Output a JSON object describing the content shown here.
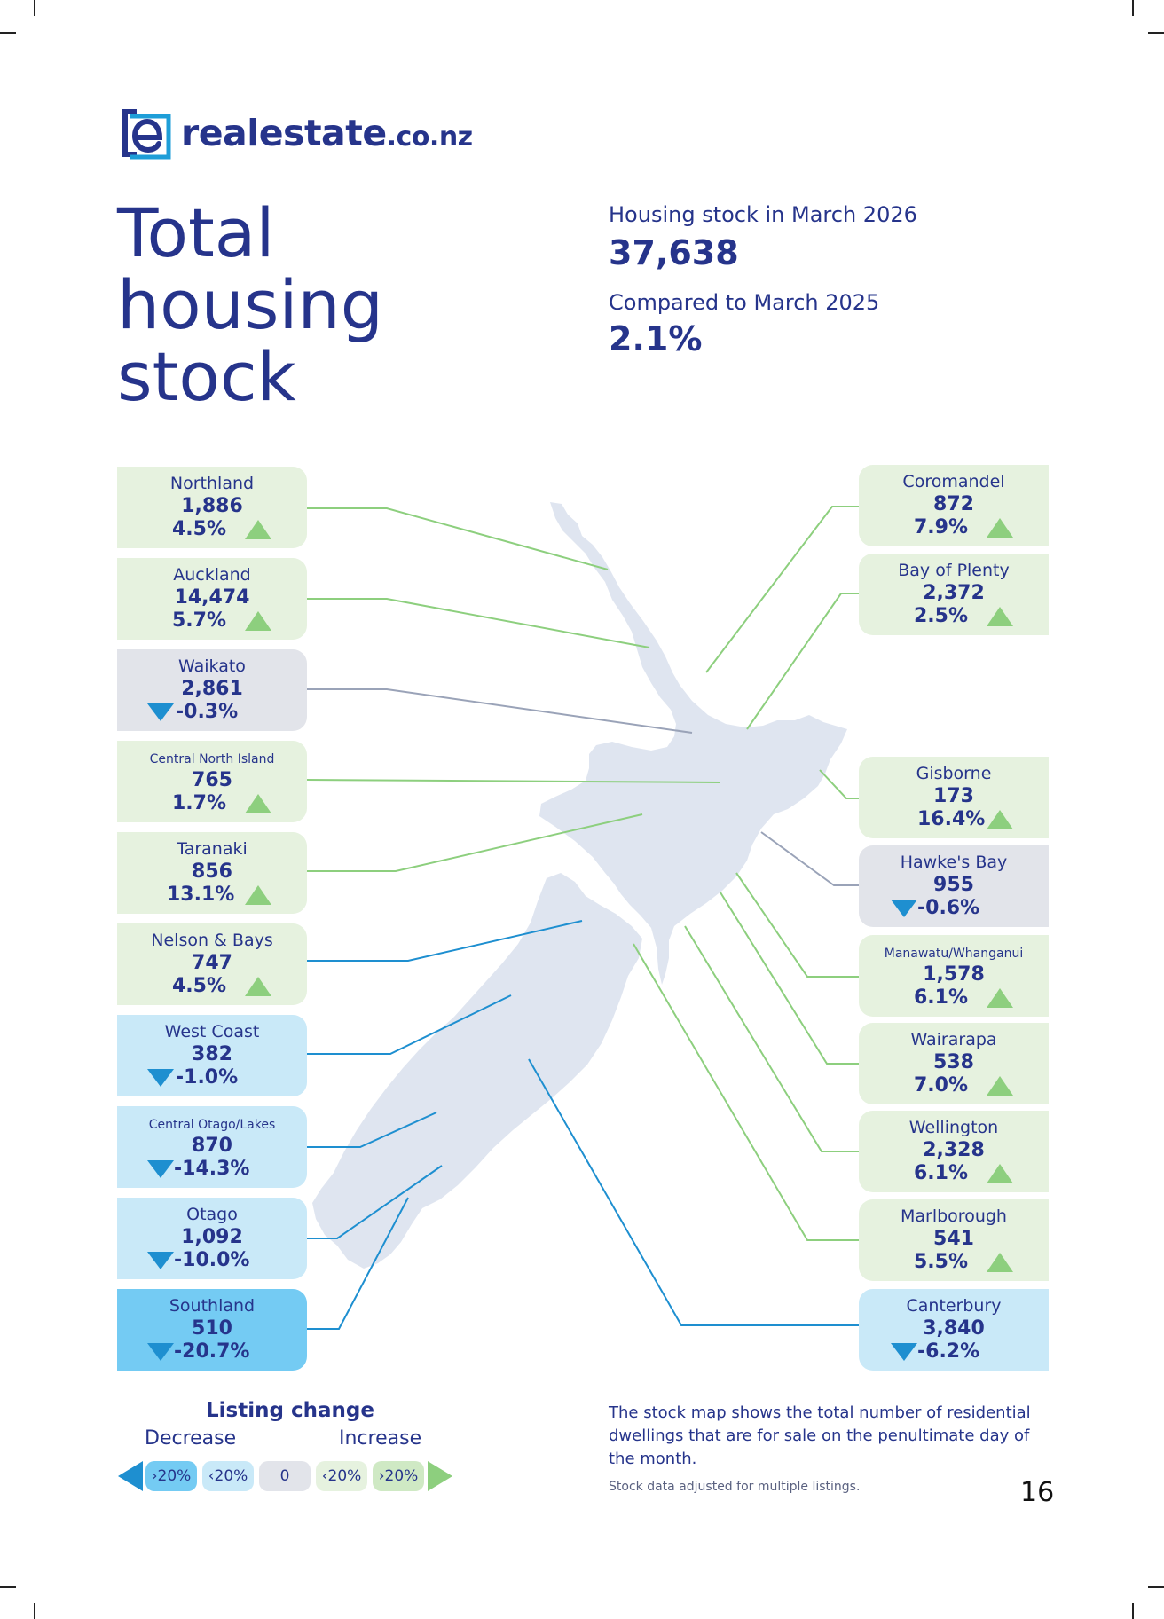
{
  "brand": {
    "name_main": "realestate",
    "name_tld": ".co.nz"
  },
  "title_lines": [
    "Total",
    "housing",
    "stock"
  ],
  "summary": {
    "stock_label": "Housing stock in March 2026",
    "stock_value": "37,638",
    "compare_label": "Compared to March 2025",
    "compare_value": "2.1%"
  },
  "colors": {
    "navy": "#26348b",
    "increase_fill": "#e6f2df",
    "increase_line": "#8dcf7e",
    "neutral_fill": "#e2e4ea",
    "neutral_line": "#9aa3b8",
    "decrease_light": "#c9e9f8",
    "decrease_strong": "#74cbf3",
    "decrease_line": "#1e8fd0",
    "map_land": "#dfe5f0"
  },
  "regions_left": [
    {
      "name": "Northland",
      "count": "1,886",
      "change": "4.5%",
      "direction": "up"
    },
    {
      "name": "Auckland",
      "count": "14,474",
      "change": "5.7%",
      "direction": "up"
    },
    {
      "name": "Waikato",
      "count": "2,861",
      "change": "-0.3%",
      "direction": "down"
    },
    {
      "name": "Central North Island",
      "count": "765",
      "change": "1.7%",
      "direction": "up"
    },
    {
      "name": "Taranaki",
      "count": "856",
      "change": "13.1%",
      "direction": "up"
    },
    {
      "name": "Nelson & Bays",
      "count": "747",
      "change": "4.5%",
      "direction": "up"
    },
    {
      "name": "West Coast",
      "count": "382",
      "change": "-1.0%",
      "direction": "down"
    },
    {
      "name": "Central Otago/Lakes",
      "count": "870",
      "change": "-14.3%",
      "direction": "down"
    },
    {
      "name": "Otago",
      "count": "1,092",
      "change": "-10.0%",
      "direction": "down"
    },
    {
      "name": "Southland",
      "count": "510",
      "change": "-20.7%",
      "direction": "down"
    }
  ],
  "regions_right": [
    {
      "name": "Coromandel",
      "count": "872",
      "change": "7.9%",
      "direction": "up"
    },
    {
      "name": "Bay of Plenty",
      "count": "2,372",
      "change": "2.5%",
      "direction": "up"
    },
    {
      "name": "Gisborne",
      "count": "173",
      "change": "16.4%",
      "direction": "up"
    },
    {
      "name": "Hawke's Bay",
      "count": "955",
      "change": "-0.6%",
      "direction": "down"
    },
    {
      "name": "Manawatu/Whanganui",
      "count": "1,578",
      "change": "6.1%",
      "direction": "up"
    },
    {
      "name": "Wairarapa",
      "count": "538",
      "change": "7.0%",
      "direction": "up"
    },
    {
      "name": "Wellington",
      "count": "2,328",
      "change": "6.1%",
      "direction": "up"
    },
    {
      "name": "Marlborough",
      "count": "541",
      "change": "5.5%",
      "direction": "up"
    },
    {
      "name": "Canterbury",
      "count": "3,840",
      "change": "-6.2%",
      "direction": "down"
    }
  ],
  "legend": {
    "title": "Listing change",
    "decrease_label": "Decrease",
    "increase_label": "Increase",
    "chips": [
      "›20%",
      "‹20%",
      "0",
      "‹20%",
      "›20%"
    ]
  },
  "footnote": "The stock map shows the total number of residential dwellings that are for sale on the penultimate day of the month.",
  "footnote_small": "Stock data adjusted for multiple listings.",
  "page_number": "16"
}
